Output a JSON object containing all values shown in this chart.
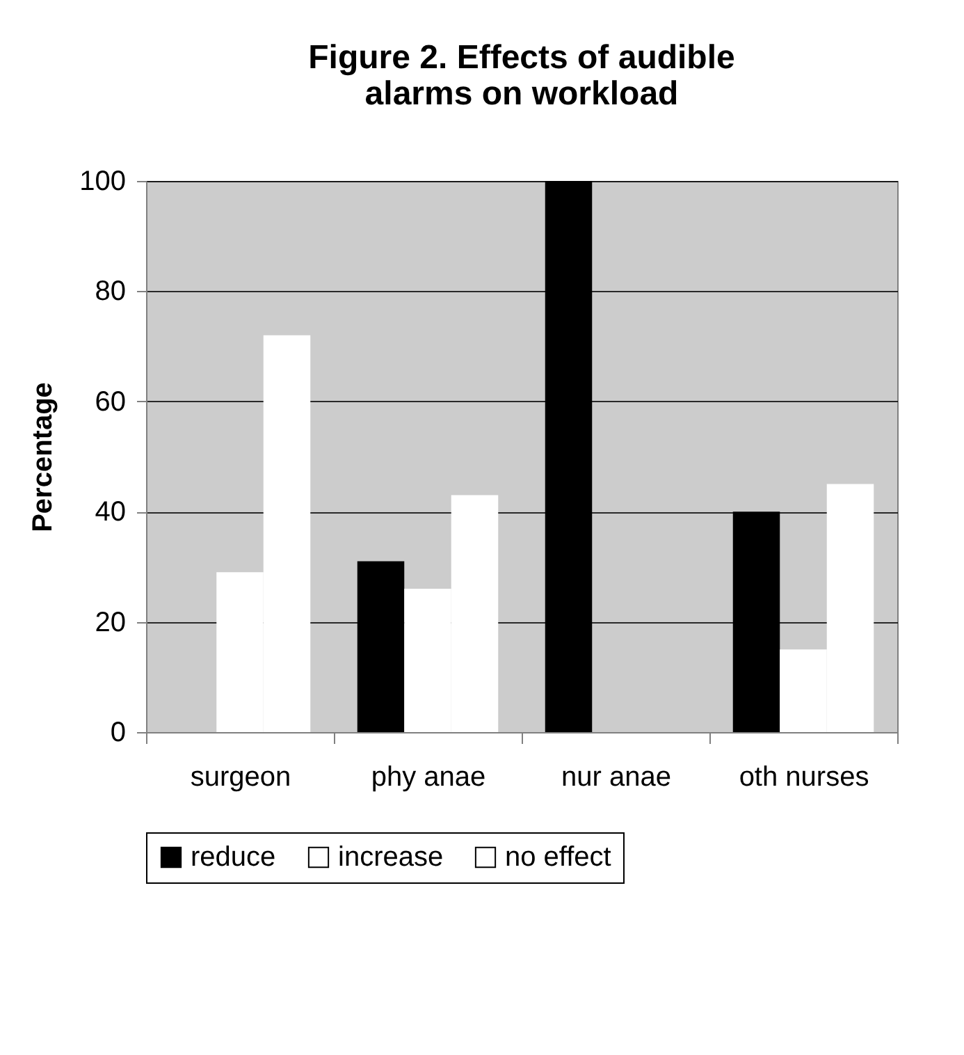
{
  "chart_data": {
    "type": "bar",
    "title": "Figure 2. Effects of audible alarms on workload",
    "ylabel": "Percentage",
    "categories": [
      "surgeon",
      "phy anae",
      "nur anae",
      "oth nurses"
    ],
    "series": [
      {
        "name": "reduce",
        "color": "#000000",
        "values": [
          0,
          31,
          100,
          40
        ]
      },
      {
        "name": "increase",
        "color": "#ffffff",
        "values": [
          29,
          26,
          0,
          15
        ]
      },
      {
        "name": "no effect",
        "color": "#ffffff",
        "values": [
          72,
          43,
          0,
          45
        ]
      }
    ],
    "ylim": [
      0,
      100
    ],
    "yticks": [
      0,
      20,
      40,
      60,
      80,
      100
    ],
    "grid": "y",
    "legend": "bottom"
  }
}
